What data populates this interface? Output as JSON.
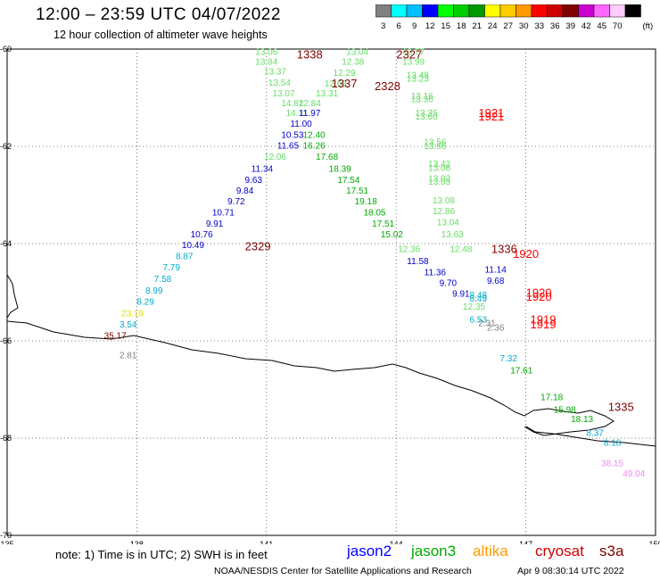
{
  "header": {
    "title": "12:00 – 23:59 UTC 04/07/2022",
    "subtitle": "12 hour collection of altimeter wave heights"
  },
  "legend": {
    "unit": "(ft)",
    "items": [
      {
        "label": "3",
        "color": "#808080"
      },
      {
        "label": "6",
        "color": "#00ffff"
      },
      {
        "label": "9",
        "color": "#00bfff"
      },
      {
        "label": "12",
        "color": "#0000ff"
      },
      {
        "label": "15",
        "color": "#00ff00"
      },
      {
        "label": "18",
        "color": "#00cc00"
      },
      {
        "label": "21",
        "color": "#009900"
      },
      {
        "label": "24",
        "color": "#ffff00"
      },
      {
        "label": "27",
        "color": "#ffcc00"
      },
      {
        "label": "30",
        "color": "#ff9900"
      },
      {
        "label": "33",
        "color": "#ff0000"
      },
      {
        "label": "36",
        "color": "#cc0000"
      },
      {
        "label": "39",
        "color": "#800000"
      },
      {
        "label": "42",
        "color": "#cc00cc"
      },
      {
        "label": "45",
        "color": "#ff66ff"
      },
      {
        "label": "70",
        "color": "#ffccff"
      },
      {
        "label": "",
        "color": "#000000"
      }
    ]
  },
  "axes": {
    "x_ticks": [
      "135",
      "138",
      "141",
      "144",
      "147",
      "150"
    ],
    "y_ticks": [
      "-60",
      "-62",
      "-64",
      "-66",
      "-68",
      "-70"
    ]
  },
  "time_labels": [
    {
      "text": "1338",
      "color": "#800000",
      "lon": 142.0,
      "lat": -60.1
    },
    {
      "text": "2327",
      "color": "#800000",
      "lon": 144.3,
      "lat": -60.1
    },
    {
      "text": "1337",
      "color": "#800000",
      "lon": 142.8,
      "lat": -60.7
    },
    {
      "text": "2328",
      "color": "#800000",
      "lon": 143.8,
      "lat": -60.75
    },
    {
      "text": "1921",
      "color": "#ff0000",
      "lon": 146.2,
      "lat": -61.3
    },
    {
      "text": "1921",
      "color": "#ff0000",
      "lon": 146.2,
      "lat": -61.38
    },
    {
      "text": "2329",
      "color": "#800000",
      "lon": 140.8,
      "lat": -64.05
    },
    {
      "text": "1336",
      "color": "#800000",
      "lon": 146.5,
      "lat": -64.1
    },
    {
      "text": "1920",
      "color": "#ff0000",
      "lon": 147.0,
      "lat": -64.2
    },
    {
      "text": "1920",
      "color": "#ff0000",
      "lon": 147.3,
      "lat": -65.0
    },
    {
      "text": "1920",
      "color": "#ff0000",
      "lon": 147.3,
      "lat": -65.08
    },
    {
      "text": "1919",
      "color": "#ff0000",
      "lon": 147.4,
      "lat": -65.55
    },
    {
      "text": "1919",
      "color": "#ff0000",
      "lon": 147.4,
      "lat": -65.65
    },
    {
      "text": "1335",
      "color": "#800000",
      "lon": 149.2,
      "lat": -67.35
    }
  ],
  "wave_heights": [
    {
      "text": "13.06",
      "color": "#66dd66",
      "lon": 141.0,
      "lat": -60.05
    },
    {
      "text": "13.84",
      "color": "#66dd66",
      "lon": 141.0,
      "lat": -60.25
    },
    {
      "text": "13.37",
      "color": "#66dd66",
      "lon": 141.2,
      "lat": -60.45
    },
    {
      "text": "13.54",
      "color": "#66dd66",
      "lon": 141.3,
      "lat": -60.68
    },
    {
      "text": "13.07",
      "color": "#66dd66",
      "lon": 141.4,
      "lat": -60.9
    },
    {
      "text": "14.82",
      "color": "#66dd66",
      "lon": 141.6,
      "lat": -61.1
    },
    {
      "text": "12.84",
      "color": "#66dd66",
      "lon": 142.0,
      "lat": -61.1
    },
    {
      "text": "14.11",
      "color": "#66dd66",
      "lon": 141.7,
      "lat": -61.3
    },
    {
      "text": "11.97",
      "color": "#0000cc",
      "lon": 142.0,
      "lat": -61.3
    },
    {
      "text": "11.00",
      "color": "#0000cc",
      "lon": 141.8,
      "lat": -61.52
    },
    {
      "text": "10.53",
      "color": "#0000cc",
      "lon": 141.6,
      "lat": -61.75
    },
    {
      "text": "12.40",
      "color": "#00aa00",
      "lon": 142.1,
      "lat": -61.75
    },
    {
      "text": "11.65",
      "color": "#0000cc",
      "lon": 141.5,
      "lat": -61.97
    },
    {
      "text": "16.26",
      "color": "#00aa00",
      "lon": 142.1,
      "lat": -61.97
    },
    {
      "text": "12.06",
      "color": "#66dd66",
      "lon": 141.2,
      "lat": -62.2
    },
    {
      "text": "17.68",
      "color": "#00aa00",
      "lon": 142.4,
      "lat": -62.2
    },
    {
      "text": "11.34",
      "color": "#0000cc",
      "lon": 140.9,
      "lat": -62.45
    },
    {
      "text": "18.39",
      "color": "#00aa00",
      "lon": 142.7,
      "lat": -62.45
    },
    {
      "text": "9.63",
      "color": "#0000cc",
      "lon": 140.7,
      "lat": -62.68
    },
    {
      "text": "17.54",
      "color": "#00aa00",
      "lon": 142.9,
      "lat": -62.68
    },
    {
      "text": "9.84",
      "color": "#0000cc",
      "lon": 140.5,
      "lat": -62.9
    },
    {
      "text": "17.51",
      "color": "#00aa00",
      "lon": 143.1,
      "lat": -62.9
    },
    {
      "text": "9.72",
      "color": "#0000cc",
      "lon": 140.3,
      "lat": -63.12
    },
    {
      "text": "19.18",
      "color": "#00aa00",
      "lon": 143.3,
      "lat": -63.12
    },
    {
      "text": "10.71",
      "color": "#0000cc",
      "lon": 140.0,
      "lat": -63.35
    },
    {
      "text": "18.05",
      "color": "#00aa00",
      "lon": 143.5,
      "lat": -63.35
    },
    {
      "text": "9.91",
      "color": "#0000cc",
      "lon": 139.8,
      "lat": -63.58
    },
    {
      "text": "17.51",
      "color": "#00aa00",
      "lon": 143.7,
      "lat": -63.58
    },
    {
      "text": "10.76",
      "color": "#0000cc",
      "lon": 139.5,
      "lat": -63.8
    },
    {
      "text": "15.02",
      "color": "#00aa00",
      "lon": 143.9,
      "lat": -63.8
    },
    {
      "text": "10.49",
      "color": "#0000cc",
      "lon": 139.3,
      "lat": -64.02
    },
    {
      "text": "8.87",
      "color": "#00aacc",
      "lon": 139.1,
      "lat": -64.25
    },
    {
      "text": "7.79",
      "color": "#00aacc",
      "lon": 138.8,
      "lat": -64.48
    },
    {
      "text": "7.58",
      "color": "#00aacc",
      "lon": 138.6,
      "lat": -64.72
    },
    {
      "text": "8.99",
      "color": "#00aacc",
      "lon": 138.4,
      "lat": -64.95
    },
    {
      "text": "8.29",
      "color": "#00aacc",
      "lon": 138.2,
      "lat": -65.18
    },
    {
      "text": "23.19",
      "color": "#dddd00",
      "lon": 137.9,
      "lat": -65.42
    },
    {
      "text": "3.54",
      "color": "#00aacc",
      "lon": 137.8,
      "lat": -65.65
    },
    {
      "text": "35.17",
      "color": "#800000",
      "lon": 137.5,
      "lat": -65.88
    },
    {
      "text": "2.81",
      "color": "#808080",
      "lon": 137.8,
      "lat": -66.28
    },
    {
      "text": "13.04",
      "color": "#66dd66",
      "lon": 143.1,
      "lat": -60.05
    },
    {
      "text": "12.38",
      "color": "#66dd66",
      "lon": 143.0,
      "lat": -60.25
    },
    {
      "text": "12.29",
      "color": "#66dd66",
      "lon": 142.8,
      "lat": -60.48
    },
    {
      "text": "12.68",
      "color": "#66dd66",
      "lon": 142.6,
      "lat": -60.7
    },
    {
      "text": "13.31",
      "color": "#66dd66",
      "lon": 142.4,
      "lat": -60.9
    },
    {
      "text": "13.77",
      "color": "#66dd66",
      "lon": 144.4,
      "lat": -60.05
    },
    {
      "text": "13.99",
      "color": "#66dd66",
      "lon": 144.4,
      "lat": -60.25
    },
    {
      "text": "13.48",
      "color": "#66dd66",
      "lon": 144.5,
      "lat": -60.52
    },
    {
      "text": "13.23",
      "color": "#66dd66",
      "lon": 144.5,
      "lat": -60.6
    },
    {
      "text": "13.16",
      "color": "#66dd66",
      "lon": 144.6,
      "lat": -60.95
    },
    {
      "text": "13.36",
      "color": "#66dd66",
      "lon": 144.6,
      "lat": -61.02
    },
    {
      "text": "13.35",
      "color": "#66dd66",
      "lon": 144.7,
      "lat": -61.3
    },
    {
      "text": "13.60",
      "color": "#66dd66",
      "lon": 144.7,
      "lat": -61.38
    },
    {
      "text": "13.56",
      "color": "#66dd66",
      "lon": 144.9,
      "lat": -61.9
    },
    {
      "text": "13.66",
      "color": "#66dd66",
      "lon": 144.9,
      "lat": -61.98
    },
    {
      "text": "13.42",
      "color": "#66dd66",
      "lon": 145.0,
      "lat": -62.35
    },
    {
      "text": "13.06",
      "color": "#66dd66",
      "lon": 145.0,
      "lat": -62.43
    },
    {
      "text": "13.02",
      "color": "#66dd66",
      "lon": 145.0,
      "lat": -62.65
    },
    {
      "text": "13.03",
      "color": "#66dd66",
      "lon": 145.0,
      "lat": -62.72
    },
    {
      "text": "13.08",
      "color": "#66dd66",
      "lon": 145.1,
      "lat": -63.1
    },
    {
      "text": "12.86",
      "color": "#66dd66",
      "lon": 145.1,
      "lat": -63.32
    },
    {
      "text": "13.04",
      "color": "#66dd66",
      "lon": 145.2,
      "lat": -63.55
    },
    {
      "text": "13.63",
      "color": "#66dd66",
      "lon": 145.3,
      "lat": -63.8
    },
    {
      "text": "12.36",
      "color": "#66dd66",
      "lon": 144.3,
      "lat": -64.1
    },
    {
      "text": "12.48",
      "color": "#66dd66",
      "lon": 145.5,
      "lat": -64.1
    },
    {
      "text": "11.58",
      "color": "#0000cc",
      "lon": 144.5,
      "lat": -64.35
    },
    {
      "text": "11.14",
      "color": "#0000cc",
      "lon": 146.3,
      "lat": -64.52
    },
    {
      "text": "11.36",
      "color": "#0000cc",
      "lon": 144.9,
      "lat": -64.58
    },
    {
      "text": "9.68",
      "color": "#0000cc",
      "lon": 146.3,
      "lat": -64.75
    },
    {
      "text": "9.70",
      "color": "#0000cc",
      "lon": 145.2,
      "lat": -64.8
    },
    {
      "text": "9.91",
      "color": "#0000cc",
      "lon": 145.5,
      "lat": -65.02
    },
    {
      "text": "8.48",
      "color": "#00aacc",
      "lon": 145.9,
      "lat": -65.05
    },
    {
      "text": "8.49",
      "color": "#00aacc",
      "lon": 145.9,
      "lat": -65.12
    },
    {
      "text": "12.35",
      "color": "#66dd66",
      "lon": 145.8,
      "lat": -65.28
    },
    {
      "text": "6.53",
      "color": "#00aacc",
      "lon": 145.9,
      "lat": -65.55
    },
    {
      "text": "2.31",
      "color": "#808080",
      "lon": 146.1,
      "lat": -65.62
    },
    {
      "text": "2.36",
      "color": "#808080",
      "lon": 146.3,
      "lat": -65.72
    },
    {
      "text": "7.32",
      "color": "#00aacc",
      "lon": 146.6,
      "lat": -66.35
    },
    {
      "text": "17.61",
      "color": "#00aa00",
      "lon": 146.9,
      "lat": -66.6
    },
    {
      "text": "17.18",
      "color": "#00aa00",
      "lon": 147.6,
      "lat": -67.15
    },
    {
      "text": "15.98",
      "color": "#00aa00",
      "lon": 147.9,
      "lat": -67.4
    },
    {
      "text": "18.13",
      "color": "#00aa00",
      "lon": 148.3,
      "lat": -67.6
    },
    {
      "text": "8.37",
      "color": "#00aacc",
      "lon": 148.6,
      "lat": -67.88
    },
    {
      "text": "8.18",
      "color": "#00aacc",
      "lon": 149.0,
      "lat": -68.08
    },
    {
      "text": "38.15",
      "color": "#ee88ee",
      "lon": 149.0,
      "lat": -68.5
    },
    {
      "text": "49.04",
      "color": "#ee88ee",
      "lon": 149.5,
      "lat": -68.72
    }
  ],
  "footer": {
    "note": "note:  1) Time is in UTC;  2) SWH is in feet",
    "satellites": [
      {
        "name": "jason2",
        "color": "#0000ff"
      },
      {
        "name": "jason3",
        "color": "#00aa00"
      },
      {
        "name": "altika",
        "color": "#ff9900"
      },
      {
        "name": "cryosat",
        "color": "#cc0000"
      },
      {
        "name": "s3a",
        "color": "#800000"
      }
    ],
    "credit": "NOAA/NESDIS Center for Satellite Applications and Research",
    "timestamp": "Apr  9 08:30:14 UTC 2022"
  }
}
